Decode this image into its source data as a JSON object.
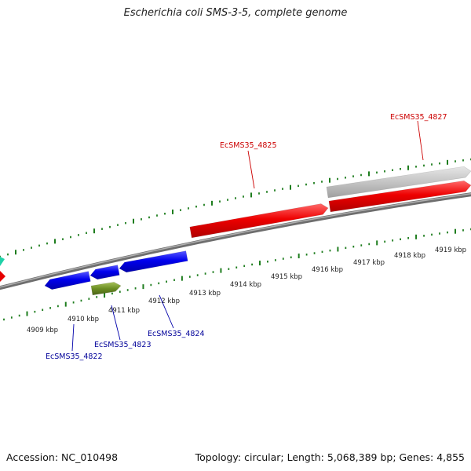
{
  "title": "Escherichia coli SMS-3-5, complete genome",
  "footer": {
    "accession": "Accession: NC_010498",
    "stats": "Topology: circular; Length: 5,068,389 bp; Genes: 4,855"
  },
  "colors": {
    "backbone": "#8c8c8c",
    "ticks": "#1e7d1e",
    "forward_gene": "#e60000",
    "reverse_gene": "#0000e0",
    "rna_gene": "#6b8e23",
    "pseudo_gene": "#c0c0c0",
    "forward_label": "#cc0000",
    "reverse_label": "#000099"
  },
  "ticks": [
    {
      "label": "4909 kbp"
    },
    {
      "label": "4910 kbp"
    },
    {
      "label": "4911 kbp"
    },
    {
      "label": "4912 kbp"
    },
    {
      "label": "4913 kbp"
    },
    {
      "label": "4914 kbp"
    },
    {
      "label": "4915 kbp"
    },
    {
      "label": "4916 kbp"
    },
    {
      "label": "4917 kbp"
    },
    {
      "label": "4918 kbp"
    },
    {
      "label": "4919 kbp"
    }
  ],
  "gene_labels": [
    {
      "label": "EcSMS35_4822"
    },
    {
      "label": "EcSMS35_4823"
    },
    {
      "label": "EcSMS35_4824"
    },
    {
      "label": "EcSMS35_4825"
    },
    {
      "label": "EcSMS35_4827"
    }
  ]
}
